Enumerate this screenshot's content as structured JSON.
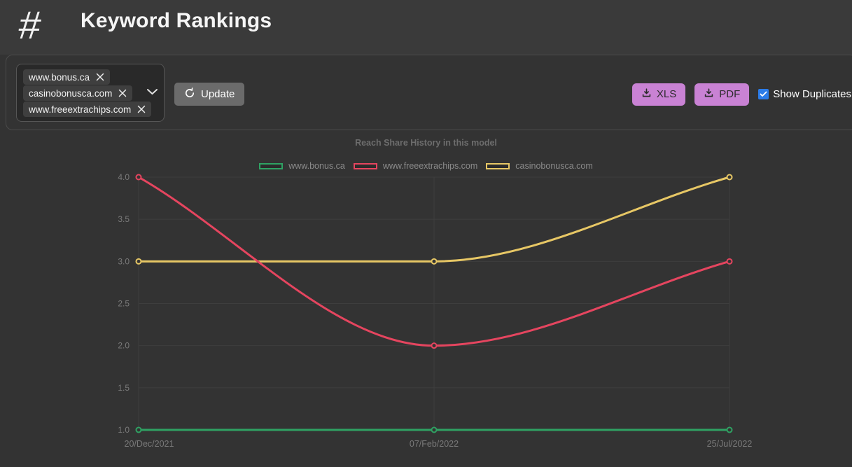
{
  "header": {
    "logo_glyph": "#",
    "title": "Keyword Rankings"
  },
  "filter": {
    "selected_domains": [
      "www.bonus.ca",
      "casinobonusca.com",
      "www.freeextrachips.com"
    ],
    "update_label": "Update",
    "xls_label": "XLS",
    "pdf_label": "PDF",
    "show_duplicates_label": "Show Duplicates",
    "show_duplicates_checked": true
  },
  "colors": {
    "page_bg": "#333333",
    "header_bg": "#3a3a3a",
    "panel_border": "#4b4b4b",
    "tag_bg": "#3f3f3f",
    "update_button_bg": "#6b6b6b",
    "download_button_bg": "#c982d4",
    "checkbox_blue": "#2b7ce9",
    "grid_line": "#3e3e3e",
    "tick_text": "#7a7a7a"
  },
  "chart_data": {
    "type": "line",
    "title": "Reach Share History in this model",
    "categories": [
      "20/Dec/2021",
      "07/Feb/2022",
      "25/Jul/2022"
    ],
    "series": [
      {
        "name": "www.bonus.ca",
        "color": "#2fa263",
        "values": [
          1.0,
          1.0,
          1.0
        ]
      },
      {
        "name": "www.freeextrachips.com",
        "color": "#e5455f",
        "values": [
          4.0,
          2.0,
          3.0
        ]
      },
      {
        "name": "casinobonusca.com",
        "color": "#e7c765",
        "values": [
          3.0,
          3.0,
          4.0
        ]
      }
    ],
    "ylim": [
      1.0,
      4.0
    ],
    "y_tick_step": 0.5,
    "y_tick_labels": [
      "1.0",
      "1.5",
      "2.0",
      "2.5",
      "3.0",
      "3.5",
      "4.0"
    ],
    "grid": true,
    "legend_position": "top",
    "curve": "monotone"
  }
}
